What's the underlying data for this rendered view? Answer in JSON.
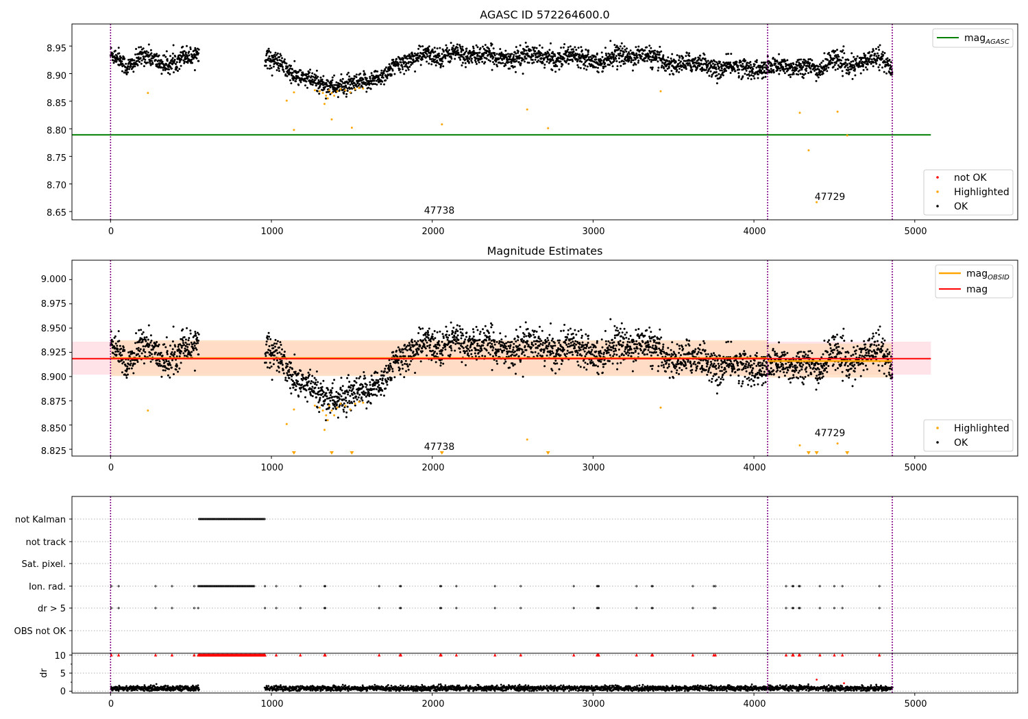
{
  "colors": {
    "ok": "#000000",
    "highlighted": "#FFA500",
    "not_ok": "#FF0000",
    "agasc_line": "#008000",
    "obsid_line": "#FFA500",
    "mag_line": "#FF0000",
    "band_pink": "#FFC0CB",
    "band_orange": "#FFDAB9",
    "obs_boundary": "#800080",
    "grid": "#B0B0B0"
  },
  "chart_data": [
    {
      "type": "scatter",
      "title": "AGASC ID 572264600.0",
      "xlim": [
        -240,
        5640
      ],
      "ylim": [
        8.635,
        8.99
      ],
      "x_ticks": [
        "0",
        "1000",
        "2000",
        "3000",
        "4000",
        "5000"
      ],
      "y_ticks": [
        "8.65",
        "8.70",
        "8.75",
        "8.80",
        "8.85",
        "8.90",
        "8.95"
      ],
      "obs_boundaries": [
        0,
        4085,
        4860
      ],
      "reference_line": {
        "name": "mag_AGASC",
        "y": 8.789,
        "x_range": [
          -240,
          5100
        ]
      },
      "annotations": [
        {
          "text": "47738",
          "x": 2040,
          "y": 8.647
        },
        {
          "text": "47729",
          "x": 4470,
          "y": 8.675
        }
      ],
      "legend": {
        "upper": [
          "mag"
        ],
        "upper_sub": "AGASC",
        "lower": [
          "not OK",
          "Highlighted",
          "OK"
        ],
        "placement_upper": "top-right",
        "placement_lower": "bottom-right"
      },
      "series": [
        {
          "name": "OK",
          "color": "#000000",
          "segments": [
            {
              "start": 0,
              "end": 550,
              "values": [
                8.935,
                8.93,
                8.91,
                8.92,
                8.935,
                8.93,
                8.92,
                8.915,
                8.92,
                8.935,
                8.93,
                8.94
              ]
            },
            {
              "start": 960,
              "end": 4860,
              "values": [
                8.93,
                8.92,
                8.895,
                8.89,
                8.88,
                8.875,
                8.88,
                8.885,
                8.895,
                8.915,
                8.925,
                8.935,
                8.93,
                8.94,
                8.93,
                8.935,
                8.93,
                8.925,
                8.935,
                8.93,
                8.925,
                8.935,
                8.93,
                8.92,
                8.935,
                8.93,
                8.935,
                8.925,
                8.915,
                8.92,
                8.92,
                8.905,
                8.915,
                8.91,
                8.905,
                8.915,
                8.91,
                8.915,
                8.905,
                8.93,
                8.91,
                8.92,
                8.935,
                8.905
              ]
            }
          ]
        },
        {
          "name": "Highlighted",
          "color": "#FFA500",
          "points": [
            [
              232,
              8.865
            ],
            [
              1095,
              8.851
            ],
            [
              1140,
              8.866
            ],
            [
              1140,
              8.798
            ],
            [
              1270,
              8.87
            ],
            [
              1300,
              8.868
            ],
            [
              1320,
              8.865
            ],
            [
              1340,
              8.86
            ],
            [
              1350,
              8.855
            ],
            [
              1360,
              8.87
            ],
            [
              1375,
              8.865
            ],
            [
              1390,
              8.86
            ],
            [
              1410,
              8.868
            ],
            [
              1430,
              8.872
            ],
            [
              1460,
              8.87
            ],
            [
              1490,
              8.866
            ],
            [
              1500,
              8.802
            ],
            [
              1520,
              8.872
            ],
            [
              1545,
              8.874
            ],
            [
              1570,
              8.873
            ],
            [
              1375,
              8.817
            ],
            [
              1330,
              8.845
            ],
            [
              2060,
              8.808
            ],
            [
              2590,
              8.835
            ],
            [
              2720,
              8.801
            ],
            [
              3420,
              8.868
            ],
            [
              4285,
              8.829
            ],
            [
              4340,
              8.761
            ],
            [
              4390,
              8.667
            ],
            [
              4520,
              8.831
            ],
            [
              4580,
              8.788
            ]
          ]
        }
      ]
    },
    {
      "type": "scatter",
      "title": "Magnitude Estimates",
      "xlim": [
        -240,
        5640
      ],
      "ylim": [
        8.818,
        9.02
      ],
      "x_ticks": [
        "0",
        "1000",
        "2000",
        "3000",
        "4000",
        "5000"
      ],
      "y_ticks": [
        "8.825",
        "8.850",
        "8.875",
        "8.900",
        "8.925",
        "8.950",
        "8.975",
        "9.000"
      ],
      "obs_boundaries": [
        0,
        4085,
        4860
      ],
      "mag_line": {
        "name": "mag",
        "y": 8.9185,
        "x_range": [
          -240,
          5100
        ]
      },
      "mag_band": [
        8.902,
        8.936
      ],
      "obsid_mag": [
        {
          "x_range": [
            0,
            4085
          ],
          "y": 8.919,
          "band": [
            8.9005,
            8.9375
          ]
        },
        {
          "x_range": [
            4085,
            4860
          ],
          "y": 8.916,
          "band": [
            8.899,
            8.934
          ]
        }
      ],
      "annotations": [
        {
          "text": "47738",
          "x": 2040,
          "y": 8.826
        },
        {
          "text": "47729",
          "x": 4470,
          "y": 8.841
        }
      ],
      "legend": {
        "upper": [
          "mag",
          "mag"
        ],
        "upper_sub": "OBSID",
        "lower": [
          "Highlighted",
          "OK"
        ],
        "placement_upper": "top-right",
        "placement_lower": "bottom-right"
      },
      "off_scale_markers": [
        1140,
        1375,
        1500,
        2060,
        2720,
        4340,
        4390,
        4580
      ],
      "series": [
        {
          "name": "OK",
          "color": "#000000",
          "segments": [
            {
              "start": 0,
              "end": 550,
              "values": [
                8.935,
                8.93,
                8.91,
                8.92,
                8.935,
                8.93,
                8.92,
                8.915,
                8.92,
                8.935,
                8.93,
                8.94
              ]
            },
            {
              "start": 960,
              "end": 4860,
              "values": [
                8.93,
                8.92,
                8.895,
                8.89,
                8.88,
                8.875,
                8.88,
                8.885,
                8.895,
                8.915,
                8.925,
                8.935,
                8.93,
                8.94,
                8.93,
                8.935,
                8.93,
                8.925,
                8.935,
                8.93,
                8.925,
                8.935,
                8.93,
                8.92,
                8.935,
                8.93,
                8.935,
                8.925,
                8.915,
                8.92,
                8.92,
                8.905,
                8.915,
                8.91,
                8.905,
                8.915,
                8.91,
                8.915,
                8.905,
                8.93,
                8.91,
                8.92,
                8.935,
                8.905
              ]
            }
          ]
        },
        {
          "name": "Highlighted",
          "color": "#FFA500",
          "points": [
            [
              232,
              8.865
            ],
            [
              1095,
              8.851
            ],
            [
              1140,
              8.866
            ],
            [
              1270,
              8.87
            ],
            [
              1300,
              8.868
            ],
            [
              1320,
              8.865
            ],
            [
              1340,
              8.86
            ],
            [
              1350,
              8.855
            ],
            [
              1360,
              8.87
            ],
            [
              1375,
              8.865
            ],
            [
              1390,
              8.86
            ],
            [
              1410,
              8.868
            ],
            [
              1430,
              8.872
            ],
            [
              1460,
              8.87
            ],
            [
              1490,
              8.866
            ],
            [
              1520,
              8.872
            ],
            [
              1545,
              8.874
            ],
            [
              1570,
              8.873
            ],
            [
              1330,
              8.845
            ],
            [
              2590,
              8.835
            ],
            [
              3420,
              8.868
            ],
            [
              4285,
              8.829
            ],
            [
              4520,
              8.831
            ]
          ]
        }
      ]
    },
    {
      "type": "scatter",
      "title": "",
      "xlim": [
        -240,
        5640
      ],
      "categories": [
        "not Kalman",
        "not track",
        "Sat. pixel.",
        "Ion. rad.",
        "dr > 5",
        "OBS not OK"
      ],
      "flags": {
        "not Kalman": {
          "ranges": [
            [
              550,
              960
            ]
          ],
          "points": []
        },
        "not track": {
          "ranges": [],
          "points": []
        },
        "Sat. pixel.": {
          "ranges": [],
          "points": []
        },
        "Ion. rad.": {
          "ranges": [
            [
              545,
              895
            ]
          ],
          "points": [
            5,
            50,
            280,
            382,
            520,
            960,
            1030,
            1180,
            1330,
            1335,
            1670,
            1800,
            1805,
            2050,
            2055,
            2150,
            2390,
            2550,
            2880,
            3025,
            3030,
            3035,
            3270,
            3365,
            3370,
            3620,
            3750,
            3760,
            4200,
            4240,
            4245,
            4280,
            4285,
            4410,
            4500,
            4550,
            4780
          ]
        },
        "dr > 5": {
          "ranges": [],
          "points": [
            5,
            50,
            280,
            382,
            520,
            545,
            960,
            1030,
            1180,
            1330,
            1335,
            1670,
            1800,
            1805,
            2050,
            2055,
            2150,
            2390,
            2550,
            2880,
            3025,
            3030,
            3035,
            3270,
            3365,
            3370,
            3620,
            3750,
            3760,
            4200,
            4240,
            4245,
            4280,
            4285,
            4410,
            4500,
            4550,
            4780
          ]
        },
        "OBS not OK": {
          "ranges": [],
          "points": []
        }
      }
    },
    {
      "type": "scatter",
      "title": "",
      "xlim": [
        -240,
        5640
      ],
      "ylim": [
        -0.5,
        10.5
      ],
      "ylabel": "dr",
      "y_ticks": [
        "0",
        "5",
        "10"
      ],
      "x_ticks": [
        "0",
        "1000",
        "2000",
        "3000",
        "4000",
        "5000"
      ],
      "dr_segments": [
        [
          0,
          550
        ],
        [
          960,
          4860
        ]
      ],
      "dr_typical": 0.8,
      "dr_outliers": [
        [
          4390,
          3.2
        ],
        [
          4560,
          2.2
        ]
      ],
      "dr_clipped_markers": [
        5,
        50,
        280,
        382,
        520,
        545,
        960,
        1030,
        1180,
        1330,
        1335,
        1670,
        1800,
        1805,
        2050,
        2055,
        2150,
        2390,
        2550,
        2880,
        3025,
        3030,
        3035,
        3270,
        3365,
        3370,
        3620,
        3750,
        3760,
        4200,
        4240,
        4245,
        4280,
        4285,
        4410,
        4500,
        4550,
        4780
      ],
      "dr_clipped_ranges": [
        [
          550,
          960
        ]
      ]
    }
  ]
}
